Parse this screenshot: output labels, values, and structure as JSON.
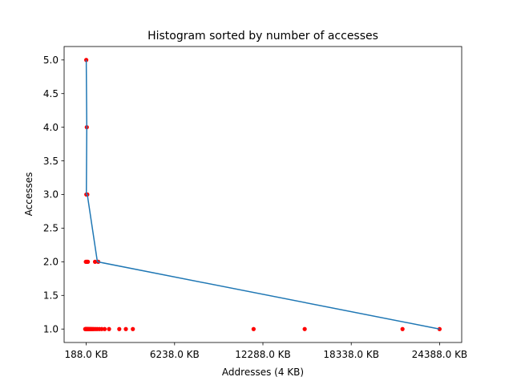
{
  "chart_data": {
    "type": "scatter",
    "title": "Histogram sorted by number of accesses",
    "xlabel": "Addresses (4 KB)",
    "ylabel": "Accesses",
    "xlim": [
      -1327,
      25903
    ],
    "ylim": [
      0.8,
      5.2
    ],
    "x_ticks": [
      {
        "value": 188,
        "label": "188.0 KB"
      },
      {
        "value": 6238,
        "label": "6238.0 KB"
      },
      {
        "value": 12288,
        "label": "12288.0 KB"
      },
      {
        "value": 18338,
        "label": "18338.0 KB"
      },
      {
        "value": 24388,
        "label": "24388.0 KB"
      }
    ],
    "y_ticks": [
      {
        "value": 1.0,
        "label": "1.0"
      },
      {
        "value": 1.5,
        "label": "1.5"
      },
      {
        "value": 2.0,
        "label": "2.0"
      },
      {
        "value": 2.5,
        "label": "2.5"
      },
      {
        "value": 3.0,
        "label": "3.0"
      },
      {
        "value": 3.5,
        "label": "3.5"
      },
      {
        "value": 4.0,
        "label": "4.0"
      },
      {
        "value": 4.5,
        "label": "4.5"
      },
      {
        "value": 5.0,
        "label": "5.0"
      }
    ],
    "grid": false,
    "series": [
      {
        "kind": "scatter",
        "color": "#ff0000",
        "points": [
          [
            188,
            5
          ],
          [
            225,
            4
          ],
          [
            195,
            3
          ],
          [
            260,
            3
          ],
          [
            160,
            2
          ],
          [
            230,
            2
          ],
          [
            300,
            2
          ],
          [
            790,
            2
          ],
          [
            1010,
            2
          ],
          [
            115,
            1
          ],
          [
            140,
            1
          ],
          [
            165,
            1
          ],
          [
            190,
            1
          ],
          [
            215,
            1
          ],
          [
            240,
            1
          ],
          [
            265,
            1
          ],
          [
            290,
            1
          ],
          [
            330,
            1
          ],
          [
            375,
            1
          ],
          [
            420,
            1
          ],
          [
            470,
            1
          ],
          [
            520,
            1
          ],
          [
            580,
            1
          ],
          [
            650,
            1
          ],
          [
            730,
            1
          ],
          [
            840,
            1
          ],
          [
            950,
            1
          ],
          [
            1090,
            1
          ],
          [
            1250,
            1
          ],
          [
            1450,
            1
          ],
          [
            1750,
            1
          ],
          [
            2450,
            1
          ],
          [
            2900,
            1
          ],
          [
            3380,
            1
          ],
          [
            11650,
            1
          ],
          [
            15150,
            1
          ],
          [
            21850,
            1
          ],
          [
            24388,
            1
          ]
        ]
      },
      {
        "kind": "line",
        "color": "#1f77b4",
        "points": [
          [
            188,
            5
          ],
          [
            225,
            4
          ],
          [
            195,
            3
          ],
          [
            260,
            3
          ],
          [
            950,
            2
          ],
          [
            24388,
            1
          ]
        ]
      }
    ]
  }
}
